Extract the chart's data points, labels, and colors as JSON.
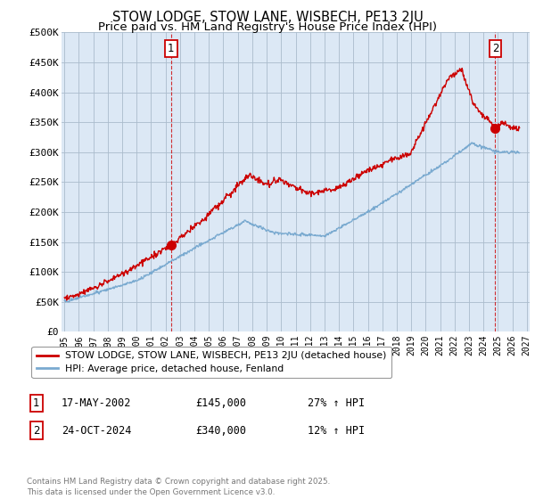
{
  "title": "STOW LODGE, STOW LANE, WISBECH, PE13 2JU",
  "subtitle": "Price paid vs. HM Land Registry's House Price Index (HPI)",
  "ylim": [
    0,
    500000
  ],
  "yticks": [
    0,
    50000,
    100000,
    150000,
    200000,
    250000,
    300000,
    350000,
    400000,
    450000,
    500000
  ],
  "ytick_labels": [
    "£0",
    "£50K",
    "£100K",
    "£150K",
    "£200K",
    "£250K",
    "£300K",
    "£350K",
    "£400K",
    "£450K",
    "£500K"
  ],
  "xlim_start": 1994.8,
  "xlim_end": 2027.2,
  "background_color": "#ffffff",
  "grid_color": "#aabbcc",
  "plot_bg_color": "#dce8f5",
  "red_line_color": "#cc0000",
  "blue_line_color": "#7aaad0",
  "marker1_x": 2002.38,
  "marker1_y": 145000,
  "marker2_x": 2024.82,
  "marker2_y": 340000,
  "legend_line1": "STOW LODGE, STOW LANE, WISBECH, PE13 2JU (detached house)",
  "legend_line2": "HPI: Average price, detached house, Fenland",
  "ann1_num": "1",
  "ann1_date": "17-MAY-2002",
  "ann1_price": "£145,000",
  "ann1_hpi": "27% ↑ HPI",
  "ann2_num": "2",
  "ann2_date": "24-OCT-2024",
  "ann2_price": "£340,000",
  "ann2_hpi": "12% ↑ HPI",
  "footer": "Contains HM Land Registry data © Crown copyright and database right 2025.\nThis data is licensed under the Open Government Licence v3.0.",
  "title_fontsize": 10.5,
  "subtitle_fontsize": 9.5
}
